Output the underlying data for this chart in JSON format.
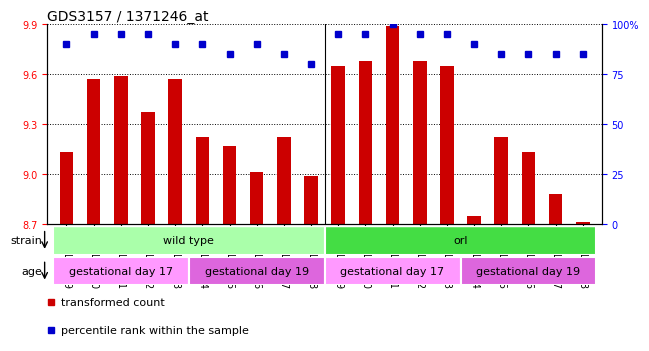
{
  "title": "GDS3157 / 1371246_at",
  "samples": [
    "GSM187669",
    "GSM187670",
    "GSM187671",
    "GSM187672",
    "GSM187673",
    "GSM187674",
    "GSM187675",
    "GSM187676",
    "GSM187677",
    "GSM187678",
    "GSM187679",
    "GSM187680",
    "GSM187681",
    "GSM187682",
    "GSM187683",
    "GSM187684",
    "GSM187685",
    "GSM187686",
    "GSM187687",
    "GSM187688"
  ],
  "transformed_count": [
    9.13,
    9.57,
    9.59,
    9.37,
    9.57,
    9.22,
    9.17,
    9.01,
    9.22,
    8.99,
    9.65,
    9.68,
    9.89,
    9.68,
    9.65,
    8.75,
    9.22,
    9.13,
    8.88,
    8.71
  ],
  "percentile_rank": [
    90,
    95,
    95,
    95,
    90,
    90,
    85,
    90,
    85,
    80,
    95,
    95,
    100,
    95,
    95,
    90,
    85,
    85,
    85,
    85
  ],
  "ylim_left": [
    8.7,
    9.9
  ],
  "ylim_right": [
    0,
    100
  ],
  "yticks_left": [
    8.7,
    9.0,
    9.3,
    9.6,
    9.9
  ],
  "yticks_right": [
    0,
    25,
    50,
    75,
    100
  ],
  "bar_color": "#cc0000",
  "dot_color": "#0000cc",
  "background_color": "#ffffff",
  "strain_groups": [
    {
      "label": "wild type",
      "start": 0,
      "end": 9,
      "color": "#aaffaa"
    },
    {
      "label": "orl",
      "start": 10,
      "end": 19,
      "color": "#44dd44"
    }
  ],
  "age_groups": [
    {
      "label": "gestational day 17",
      "start": 0,
      "end": 4,
      "color": "#ff99ff"
    },
    {
      "label": "gestational day 19",
      "start": 5,
      "end": 9,
      "color": "#dd66dd"
    },
    {
      "label": "gestational day 17",
      "start": 10,
      "end": 14,
      "color": "#ff99ff"
    },
    {
      "label": "gestational day 19",
      "start": 15,
      "end": 19,
      "color": "#dd66dd"
    }
  ],
  "legend_items": [
    {
      "label": "transformed count",
      "color": "#cc0000"
    },
    {
      "label": "percentile rank within the sample",
      "color": "#0000cc"
    }
  ],
  "tick_label_fontsize": 7,
  "title_fontsize": 10,
  "bar_width": 0.5
}
